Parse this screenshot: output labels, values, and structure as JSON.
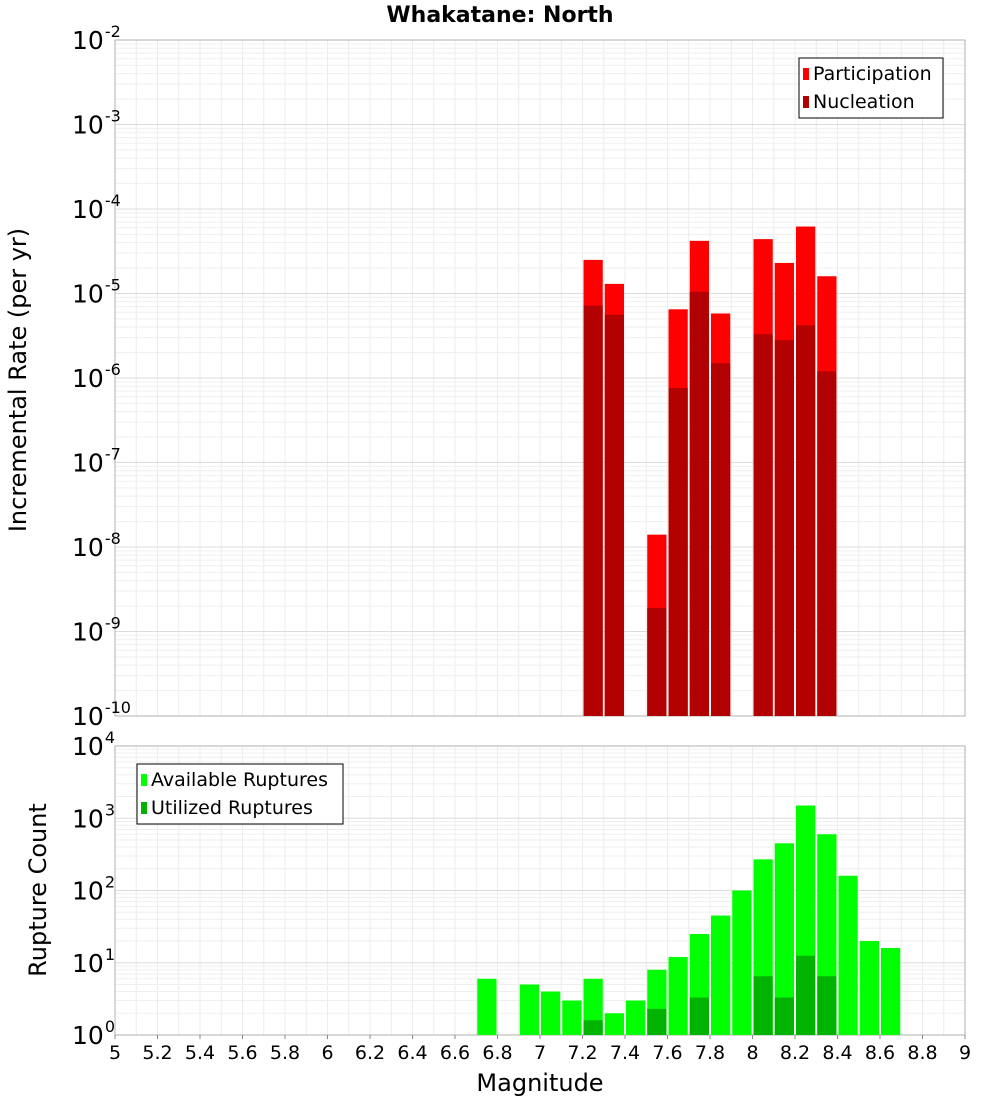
{
  "chart_data": [
    {
      "type": "bar",
      "title": "Whakatane: North",
      "xlabel": "",
      "ylabel": "Incremental Rate (per yr)",
      "yscale": "log",
      "ylim_exponents": [
        -10,
        -2
      ],
      "xlim": [
        5,
        9
      ],
      "grid": true,
      "legend_position": "top-right",
      "x": [
        7.25,
        7.35,
        7.55,
        7.65,
        7.75,
        7.85,
        8.05,
        8.15,
        8.25,
        8.35
      ],
      "series": [
        {
          "name": "Participation",
          "color": "#ff0000",
          "values": [
            2.5e-05,
            1.3e-05,
            1.4e-08,
            6.5e-06,
            4.2e-05,
            5.8e-06,
            4.4e-05,
            2.3e-05,
            6.2e-05,
            1.6e-05
          ]
        },
        {
          "name": "Nucleation",
          "color": "#b30000",
          "values": [
            7.2e-06,
            5.6e-06,
            1.9e-09,
            7.6e-07,
            1.05e-05,
            1.5e-06,
            3.3e-06,
            2.8e-06,
            4.2e-06,
            1.2e-06
          ]
        }
      ]
    },
    {
      "type": "bar",
      "title": "",
      "xlabel": "Magnitude",
      "ylabel": "Rupture Count",
      "yscale": "log",
      "ylim_exponents": [
        0,
        4
      ],
      "xlim": [
        5,
        9
      ],
      "grid": true,
      "legend_position": "top-left",
      "x_ticks": [
        "5",
        "5.2",
        "5.4",
        "5.6",
        "5.8",
        "6",
        "6.2",
        "6.4",
        "6.6",
        "6.8",
        "7",
        "7.2",
        "7.4",
        "7.6",
        "7.8",
        "8",
        "8.2",
        "8.4",
        "8.6",
        "8.8",
        "9"
      ],
      "x": [
        6.75,
        6.95,
        7.05,
        7.15,
        7.25,
        7.35,
        7.45,
        7.55,
        7.65,
        7.75,
        7.85,
        7.95,
        8.05,
        8.15,
        8.25,
        8.35,
        8.45,
        8.55,
        8.65
      ],
      "series": [
        {
          "name": "Available Ruptures",
          "color": "#00ff00",
          "values": [
            6,
            5,
            4,
            3,
            6,
            2,
            3,
            8,
            12,
            25,
            45,
            100,
            270,
            450,
            1500,
            600,
            160,
            20,
            16
          ]
        },
        {
          "name": "Utilized Ruptures",
          "color": "#00b300",
          "values": [
            0,
            0,
            0,
            0,
            1.6,
            0.9,
            0,
            2.3,
            0.9,
            3.3,
            0.9,
            0,
            6.5,
            3.3,
            12.5,
            6.5,
            0,
            0,
            0
          ]
        }
      ]
    }
  ]
}
